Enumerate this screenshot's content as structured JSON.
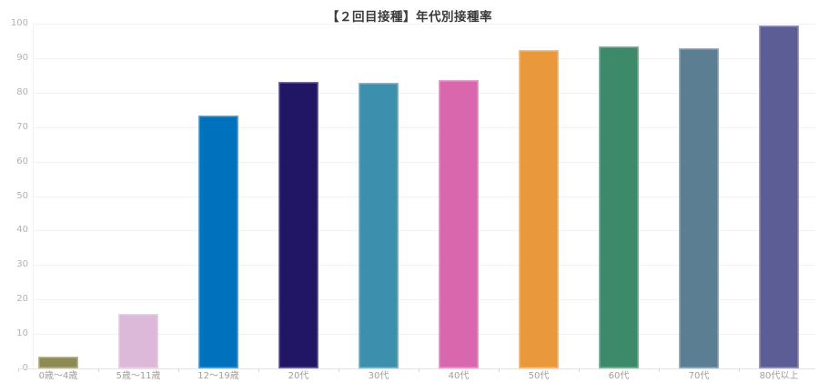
{
  "title": "【２回目接種】年代別接種率",
  "chart_data": {
    "type": "bar",
    "title": "【２回目接種】年代別接種率",
    "categories": [
      "0歳〜4歳",
      "5歳〜11歳",
      "12〜19歳",
      "20代",
      "30代",
      "40代",
      "50代",
      "60代",
      "70代",
      "80代以上"
    ],
    "values": [
      3.5,
      15.8,
      73.4,
      83.0,
      82.8,
      83.6,
      92.4,
      93.5,
      93.0,
      99.5
    ],
    "bar_colors": [
      "#8E8A55",
      "#DCB9D8",
      "#0071BC",
      "#201663",
      "#3C8FAD",
      "#D967AD",
      "#E9993B",
      "#3D8A6B",
      "#5C7E93",
      "#5C5D94"
    ],
    "xlabel": "",
    "ylabel": "",
    "ylim": [
      0,
      100
    ],
    "yticks": [
      0,
      10,
      20,
      30,
      40,
      50,
      60,
      70,
      80,
      90,
      100
    ],
    "grid": true,
    "legend": false
  },
  "colors": {
    "background": "#ffffff",
    "title_text": "#3a3a3a",
    "gridline": "#f2f2f2",
    "axis_line": "#e7e2de",
    "ytick_text": "#b5b2ae",
    "xtick_text": "#a59c96"
  }
}
